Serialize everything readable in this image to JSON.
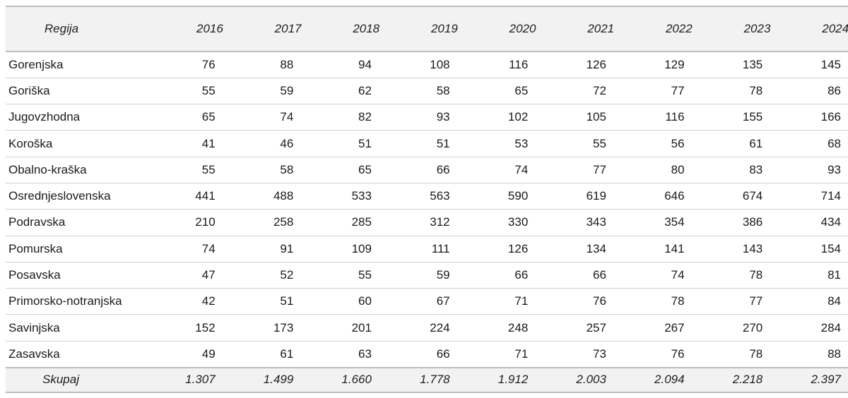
{
  "table": {
    "region_header": "Regija",
    "years": [
      "2016",
      "2017",
      "2018",
      "2019",
      "2020",
      "2021",
      "2022",
      "2023",
      "2024"
    ],
    "rows": [
      {
        "region": "Gorenjska",
        "values": [
          "76",
          "88",
          "94",
          "108",
          "116",
          "126",
          "129",
          "135",
          "145"
        ]
      },
      {
        "region": "Goriška",
        "values": [
          "55",
          "59",
          "62",
          "58",
          "65",
          "72",
          "77",
          "78",
          "86"
        ]
      },
      {
        "region": "Jugovzhodna",
        "values": [
          "65",
          "74",
          "82",
          "93",
          "102",
          "105",
          "116",
          "155",
          "166"
        ]
      },
      {
        "region": "Koroška",
        "values": [
          "41",
          "46",
          "51",
          "51",
          "53",
          "55",
          "56",
          "61",
          "68"
        ]
      },
      {
        "region": "Obalno-kraška",
        "values": [
          "55",
          "58",
          "65",
          "66",
          "74",
          "77",
          "80",
          "83",
          "93"
        ]
      },
      {
        "region": "Osrednjeslovenska",
        "values": [
          "441",
          "488",
          "533",
          "563",
          "590",
          "619",
          "646",
          "674",
          "714"
        ]
      },
      {
        "region": "Podravska",
        "values": [
          "210",
          "258",
          "285",
          "312",
          "330",
          "343",
          "354",
          "386",
          "434"
        ]
      },
      {
        "region": "Pomurska",
        "values": [
          "74",
          "91",
          "109",
          "111",
          "126",
          "134",
          "141",
          "143",
          "154"
        ]
      },
      {
        "region": "Posavska",
        "values": [
          "47",
          "52",
          "55",
          "59",
          "66",
          "66",
          "74",
          "78",
          "81"
        ]
      },
      {
        "region": "Primorsko-notranjska",
        "values": [
          "42",
          "51",
          "60",
          "67",
          "71",
          "76",
          "78",
          "77",
          "84"
        ]
      },
      {
        "region": "Savinjska",
        "values": [
          "152",
          "173",
          "201",
          "224",
          "248",
          "257",
          "267",
          "270",
          "284"
        ]
      },
      {
        "region": "Zasavska",
        "values": [
          "49",
          "61",
          "63",
          "66",
          "71",
          "73",
          "76",
          "78",
          "88"
        ]
      }
    ],
    "total": {
      "label": "Skupaj",
      "values": [
        "1.307",
        "1.499",
        "1.660",
        "1.778",
        "1.912",
        "2.003",
        "2.094",
        "2.218",
        "2.397"
      ]
    }
  }
}
